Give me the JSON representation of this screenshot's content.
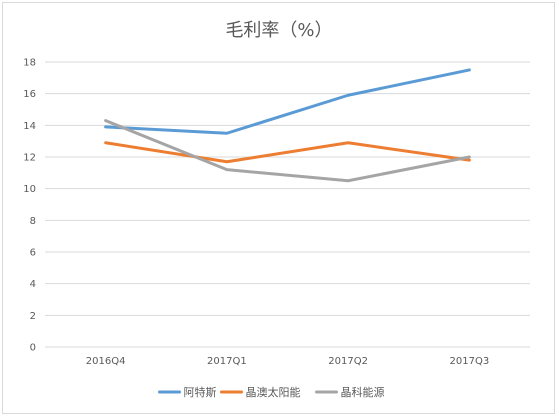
{
  "chart_data": {
    "type": "line",
    "title": "毛利率（%）",
    "categories": [
      "2016Q4",
      "2017Q1",
      "2017Q2",
      "2017Q3"
    ],
    "ylim": [
      0,
      18
    ],
    "yticks": [
      "0",
      "2",
      "4",
      "6",
      "8",
      "10",
      "12",
      "14",
      "16",
      "18"
    ],
    "grid": true,
    "legend_position": "bottom",
    "series": [
      {
        "name": "阿特斯",
        "color": "#5b9bd5",
        "values": [
          13.9,
          13.5,
          15.9,
          17.5
        ]
      },
      {
        "name": "晶澳太阳能",
        "color": "#ed7d31",
        "values": [
          12.9,
          11.7,
          12.9,
          11.8
        ]
      },
      {
        "name": "晶科能源",
        "color": "#a5a5a5",
        "values": [
          14.3,
          11.2,
          10.5,
          12.0
        ]
      }
    ]
  }
}
